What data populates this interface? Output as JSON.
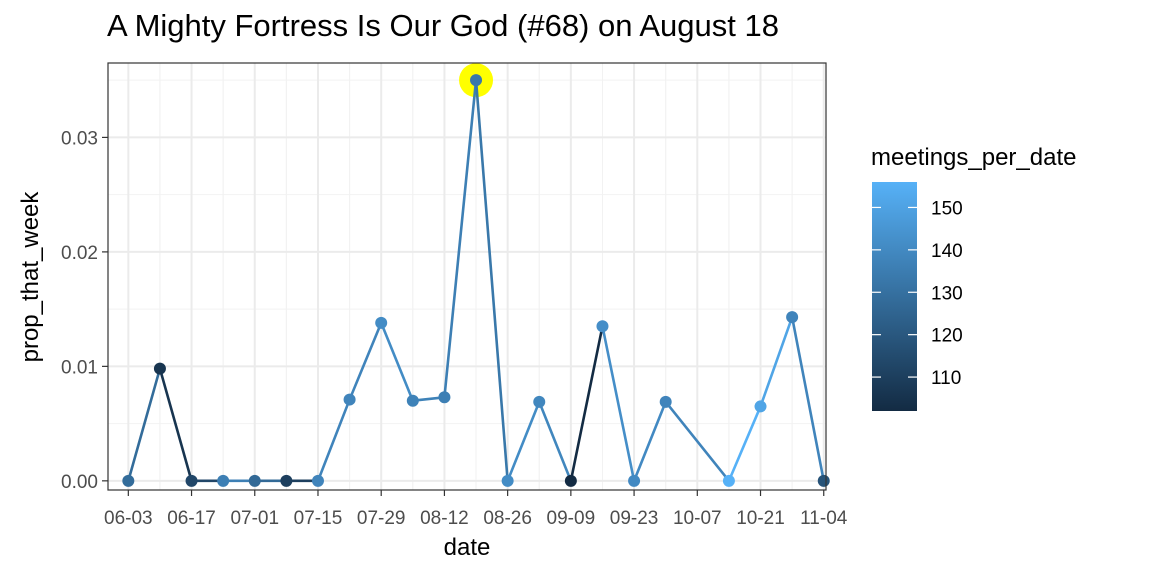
{
  "chart_data": {
    "type": "line",
    "title": "A Mighty Fortress Is Our God (#68) on August 18",
    "xlabel": "date",
    "ylabel": "prop_that_week",
    "x_tick_labels": [
      "06-03",
      "06-17",
      "07-01",
      "07-15",
      "07-29",
      "08-12",
      "08-26",
      "09-09",
      "09-23",
      "10-07",
      "10-21",
      "11-04"
    ],
    "y_tick_labels": [
      "0.00",
      "0.01",
      "0.02",
      "0.03"
    ],
    "ylim": [
      -0.0008,
      0.0365
    ],
    "grid": true,
    "legend": {
      "title": "meetings_per_date",
      "position": "right",
      "type": "colorbar",
      "range": [
        102,
        156
      ],
      "ticks": [
        110,
        120,
        130,
        140,
        150
      ],
      "low_color": "#132b43",
      "high_color": "#56b1f7"
    },
    "highlight": {
      "date": "08-19",
      "color": "#ffff00"
    },
    "points": [
      {
        "date": "06-03",
        "prop_that_week": 0.0,
        "meetings_per_date": 128
      },
      {
        "date": "06-10",
        "prop_that_week": 0.0098,
        "meetings_per_date": 106
      },
      {
        "date": "06-17",
        "prop_that_week": 0.0,
        "meetings_per_date": 113
      },
      {
        "date": "06-24",
        "prop_that_week": 0.0,
        "meetings_per_date": 136
      },
      {
        "date": "07-01",
        "prop_that_week": 0.0,
        "meetings_per_date": 127
      },
      {
        "date": "07-08",
        "prop_that_week": 0.0,
        "meetings_per_date": 110
      },
      {
        "date": "07-15",
        "prop_that_week": 0.0,
        "meetings_per_date": 138
      },
      {
        "date": "07-22",
        "prop_that_week": 0.0071,
        "meetings_per_date": 138
      },
      {
        "date": "07-29",
        "prop_that_week": 0.0138,
        "meetings_per_date": 141
      },
      {
        "date": "08-05",
        "prop_that_week": 0.007,
        "meetings_per_date": 137
      },
      {
        "date": "08-12",
        "prop_that_week": 0.0073,
        "meetings_per_date": 136
      },
      {
        "date": "08-19",
        "prop_that_week": 0.035,
        "meetings_per_date": 133
      },
      {
        "date": "08-26",
        "prop_that_week": 0.0,
        "meetings_per_date": 141
      },
      {
        "date": "09-02",
        "prop_that_week": 0.0069,
        "meetings_per_date": 139
      },
      {
        "date": "09-09",
        "prop_that_week": 0.0,
        "meetings_per_date": 102
      },
      {
        "date": "09-16",
        "prop_that_week": 0.0135,
        "meetings_per_date": 142
      },
      {
        "date": "09-23",
        "prop_that_week": 0.0,
        "meetings_per_date": 140
      },
      {
        "date": "09-30",
        "prop_that_week": 0.0069,
        "meetings_per_date": 138
      },
      {
        "date": "10-14",
        "prop_that_week": 0.0,
        "meetings_per_date": 156
      },
      {
        "date": "10-21",
        "prop_that_week": 0.0065,
        "meetings_per_date": 151
      },
      {
        "date": "10-28",
        "prop_that_week": 0.0143,
        "meetings_per_date": 138
      },
      {
        "date": "11-04",
        "prop_that_week": 0.0,
        "meetings_per_date": 118
      }
    ]
  }
}
